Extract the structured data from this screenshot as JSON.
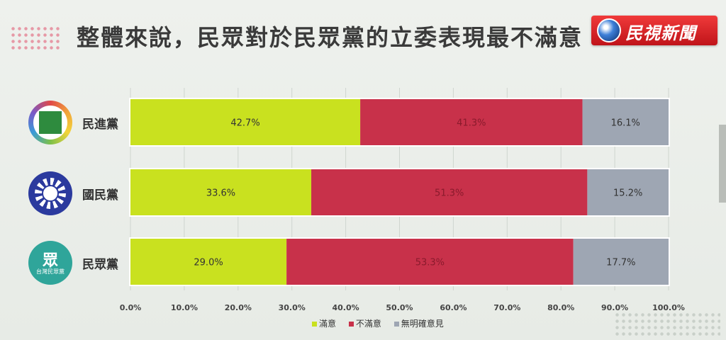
{
  "header": {
    "title": "整體來說，民眾對於民眾黨的立委表現最不滿意",
    "broadcaster": "民視新聞"
  },
  "parties": [
    {
      "name": "民進黨",
      "icon": "dpp-logo-icon"
    },
    {
      "name": "國民黨",
      "icon": "kmt-logo-icon"
    },
    {
      "name": "民眾黨",
      "icon": "tpp-logo-icon",
      "logo_text": "台灣民眾黨",
      "logo_glyph": "眾"
    }
  ],
  "chart_data": {
    "type": "bar",
    "orientation": "horizontal",
    "stacked": true,
    "categories": [
      "民進黨",
      "國民黨",
      "民眾黨"
    ],
    "series": [
      {
        "name": "滿意",
        "color": "#c9e11f",
        "values": [
          42.7,
          33.6,
          29.0
        ],
        "labels": [
          "42.7%",
          "33.6%",
          "29.0%"
        ]
      },
      {
        "name": "不滿意",
        "color": "#c8314a",
        "values": [
          41.3,
          51.3,
          53.3
        ],
        "labels": [
          "41.3%",
          "51.3%",
          "53.3%"
        ]
      },
      {
        "name": "無明確意見",
        "color": "#9ea6b3",
        "values": [
          16.1,
          15.2,
          17.7
        ],
        "labels": [
          "16.1%",
          "15.2%",
          "17.7%"
        ]
      }
    ],
    "xlim": [
      0,
      100
    ],
    "xticks": [
      0,
      10,
      20,
      30,
      40,
      50,
      60,
      70,
      80,
      90,
      100
    ],
    "xtick_labels": [
      "0.0%",
      "10.0%",
      "20.0%",
      "30.0%",
      "40.0%",
      "50.0%",
      "60.0%",
      "70.0%",
      "80.0%",
      "90.0%",
      "100.0%"
    ],
    "grid": true,
    "legend": "bottom"
  }
}
